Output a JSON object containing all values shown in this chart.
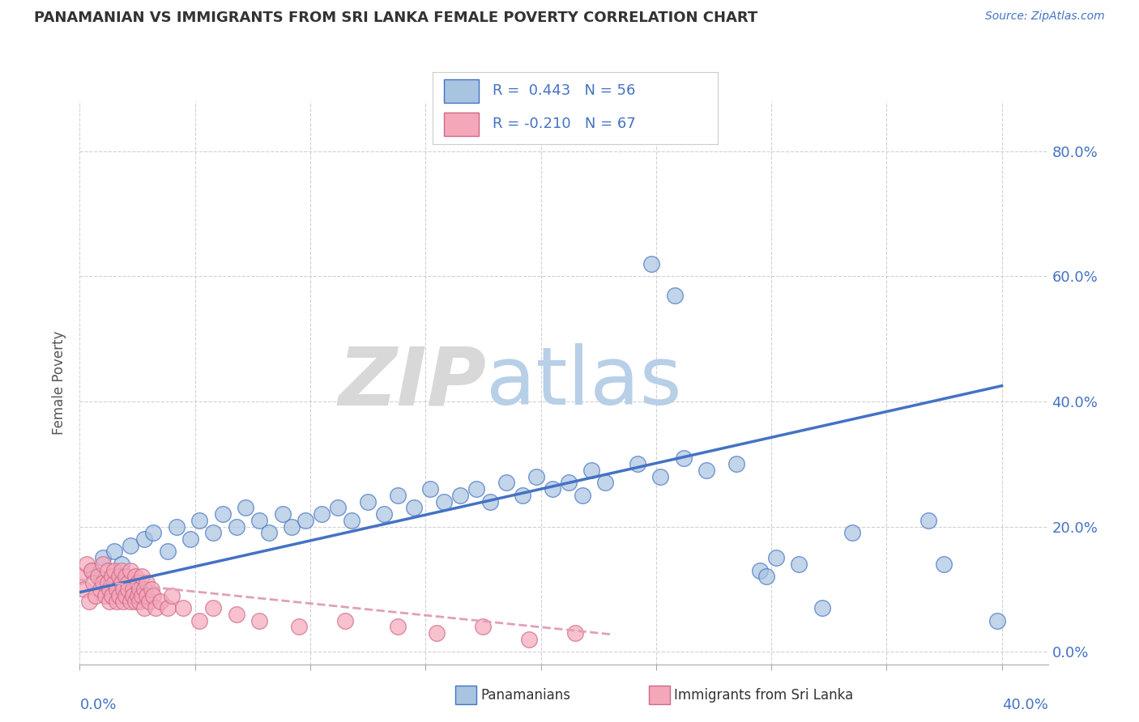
{
  "title": "PANAMANIAN VS IMMIGRANTS FROM SRI LANKA FEMALE POVERTY CORRELATION CHART",
  "source": "Source: ZipAtlas.com",
  "ylabel": "Female Poverty",
  "xlim": [
    0.0,
    0.42
  ],
  "ylim": [
    -0.02,
    0.88
  ],
  "ytick_values": [
    0.0,
    0.2,
    0.4,
    0.6,
    0.8
  ],
  "legend1_R": "0.443",
  "legend1_N": "56",
  "legend2_R": "-0.210",
  "legend2_N": "67",
  "blue_color": "#a8c4e0",
  "pink_color": "#f4a7b9",
  "blue_line_color": "#4472c4",
  "pink_edge_color": "#d06888",
  "blue_scatter": [
    [
      0.005,
      0.13
    ],
    [
      0.01,
      0.15
    ],
    [
      0.015,
      0.16
    ],
    [
      0.018,
      0.14
    ],
    [
      0.022,
      0.17
    ],
    [
      0.028,
      0.18
    ],
    [
      0.032,
      0.19
    ],
    [
      0.038,
      0.16
    ],
    [
      0.042,
      0.2
    ],
    [
      0.048,
      0.18
    ],
    [
      0.052,
      0.21
    ],
    [
      0.058,
      0.19
    ],
    [
      0.062,
      0.22
    ],
    [
      0.068,
      0.2
    ],
    [
      0.072,
      0.23
    ],
    [
      0.078,
      0.21
    ],
    [
      0.082,
      0.19
    ],
    [
      0.088,
      0.22
    ],
    [
      0.092,
      0.2
    ],
    [
      0.098,
      0.21
    ],
    [
      0.105,
      0.22
    ],
    [
      0.112,
      0.23
    ],
    [
      0.118,
      0.21
    ],
    [
      0.125,
      0.24
    ],
    [
      0.132,
      0.22
    ],
    [
      0.138,
      0.25
    ],
    [
      0.145,
      0.23
    ],
    [
      0.152,
      0.26
    ],
    [
      0.158,
      0.24
    ],
    [
      0.165,
      0.25
    ],
    [
      0.172,
      0.26
    ],
    [
      0.178,
      0.24
    ],
    [
      0.185,
      0.27
    ],
    [
      0.192,
      0.25
    ],
    [
      0.198,
      0.28
    ],
    [
      0.205,
      0.26
    ],
    [
      0.212,
      0.27
    ],
    [
      0.218,
      0.25
    ],
    [
      0.222,
      0.29
    ],
    [
      0.228,
      0.27
    ],
    [
      0.242,
      0.3
    ],
    [
      0.252,
      0.28
    ],
    [
      0.262,
      0.31
    ],
    [
      0.272,
      0.29
    ],
    [
      0.285,
      0.3
    ],
    [
      0.295,
      0.13
    ],
    [
      0.298,
      0.12
    ],
    [
      0.302,
      0.15
    ],
    [
      0.312,
      0.14
    ],
    [
      0.322,
      0.07
    ],
    [
      0.335,
      0.19
    ],
    [
      0.248,
      0.62
    ],
    [
      0.258,
      0.57
    ],
    [
      0.368,
      0.21
    ],
    [
      0.375,
      0.14
    ],
    [
      0.398,
      0.05
    ]
  ],
  "pink_scatter": [
    [
      0.0,
      0.12
    ],
    [
      0.002,
      0.1
    ],
    [
      0.003,
      0.14
    ],
    [
      0.004,
      0.08
    ],
    [
      0.005,
      0.13
    ],
    [
      0.006,
      0.11
    ],
    [
      0.007,
      0.09
    ],
    [
      0.008,
      0.12
    ],
    [
      0.009,
      0.1
    ],
    [
      0.01,
      0.11
    ],
    [
      0.01,
      0.14
    ],
    [
      0.011,
      0.09
    ],
    [
      0.012,
      0.13
    ],
    [
      0.012,
      0.11
    ],
    [
      0.013,
      0.1
    ],
    [
      0.013,
      0.08
    ],
    [
      0.014,
      0.12
    ],
    [
      0.014,
      0.09
    ],
    [
      0.015,
      0.11
    ],
    [
      0.015,
      0.13
    ],
    [
      0.016,
      0.1
    ],
    [
      0.016,
      0.08
    ],
    [
      0.017,
      0.12
    ],
    [
      0.017,
      0.09
    ],
    [
      0.018,
      0.11
    ],
    [
      0.018,
      0.13
    ],
    [
      0.019,
      0.1
    ],
    [
      0.019,
      0.08
    ],
    [
      0.02,
      0.12
    ],
    [
      0.02,
      0.09
    ],
    [
      0.021,
      0.11
    ],
    [
      0.021,
      0.1
    ],
    [
      0.022,
      0.08
    ],
    [
      0.022,
      0.13
    ],
    [
      0.023,
      0.1
    ],
    [
      0.023,
      0.09
    ],
    [
      0.024,
      0.12
    ],
    [
      0.024,
      0.08
    ],
    [
      0.025,
      0.11
    ],
    [
      0.025,
      0.09
    ],
    [
      0.026,
      0.1
    ],
    [
      0.026,
      0.08
    ],
    [
      0.027,
      0.12
    ],
    [
      0.027,
      0.09
    ],
    [
      0.028,
      0.1
    ],
    [
      0.028,
      0.07
    ],
    [
      0.029,
      0.11
    ],
    [
      0.029,
      0.09
    ],
    [
      0.03,
      0.08
    ],
    [
      0.031,
      0.1
    ],
    [
      0.032,
      0.09
    ],
    [
      0.033,
      0.07
    ],
    [
      0.035,
      0.08
    ],
    [
      0.038,
      0.07
    ],
    [
      0.04,
      0.09
    ],
    [
      0.045,
      0.07
    ],
    [
      0.052,
      0.05
    ],
    [
      0.058,
      0.07
    ],
    [
      0.068,
      0.06
    ],
    [
      0.078,
      0.05
    ],
    [
      0.095,
      0.04
    ],
    [
      0.115,
      0.05
    ],
    [
      0.138,
      0.04
    ],
    [
      0.155,
      0.03
    ],
    [
      0.175,
      0.04
    ],
    [
      0.195,
      0.02
    ],
    [
      0.215,
      0.03
    ]
  ],
  "blue_trend_x": [
    0.0,
    0.4
  ],
  "blue_trend_y": [
    0.095,
    0.425
  ],
  "pink_trend_x": [
    0.0,
    0.23
  ],
  "pink_trend_y": [
    0.115,
    0.028
  ]
}
